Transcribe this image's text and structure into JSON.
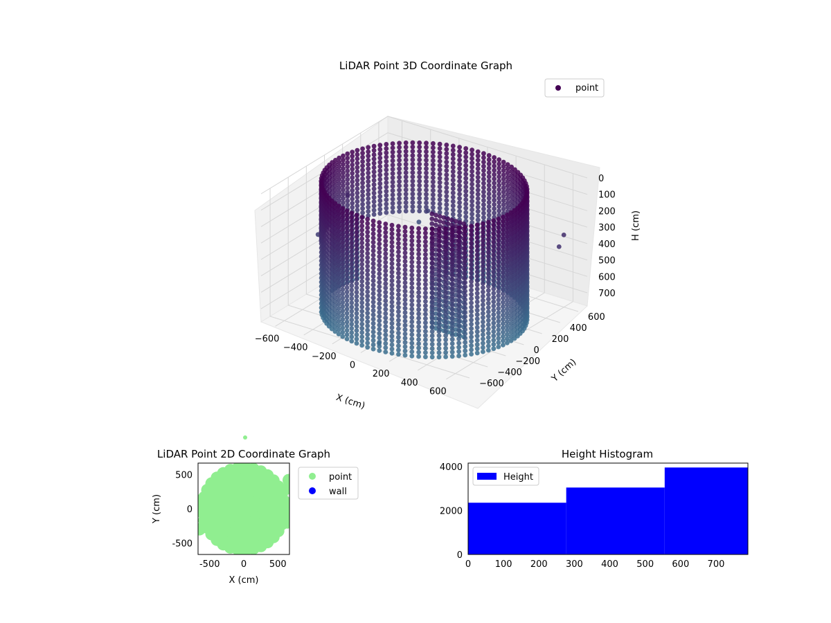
{
  "figure": {
    "background": "#ffffff"
  },
  "chart_data": [
    {
      "type": "scatter",
      "projection": "3d",
      "title": "LiDAR Point 3D Coordinate Graph",
      "xlabel": "X (cm)",
      "ylabel": "Y (cm)",
      "zlabel": "H (cm)",
      "xlim": [
        -700,
        700
      ],
      "ylim": [
        -700,
        700
      ],
      "zlim": [
        0,
        780
      ],
      "z_inverted": true,
      "x_ticks": [
        "−600",
        "−400",
        "−200",
        "0",
        "200",
        "400",
        "600"
      ],
      "y_ticks": [
        "−600",
        "−400",
        "−200",
        "0",
        "200",
        "400",
        "600"
      ],
      "z_ticks": [
        "0",
        "100",
        "200",
        "300",
        "400",
        "500",
        "600",
        "700"
      ],
      "colormap": "viridis-like (purple #440154 at top to teal #3b6e8e at bottom)",
      "grid": true,
      "legend": {
        "position": "top-right",
        "entries": [
          {
            "label": "point",
            "color": "#440154"
          }
        ]
      },
      "series": [
        {
          "name": "point",
          "description_shape": "cylindrical wall scan of a room, radius ~600 cm, heights 0–780 cm"
        }
      ]
    },
    {
      "type": "scatter",
      "title": "LiDAR Point 2D Coordinate Graph",
      "xlabel": "X (cm)",
      "ylabel": "Y (cm)",
      "xlim": [
        -670,
        670
      ],
      "ylim": [
        -670,
        670
      ],
      "x_ticks": [
        -500,
        0,
        500
      ],
      "y_ticks": [
        -500,
        0,
        500
      ],
      "legend": {
        "position": "outside-right",
        "entries": [
          {
            "label": "point",
            "color": "#90ee90"
          },
          {
            "label": "wall",
            "color": "#0000ff"
          }
        ]
      },
      "series": [
        {
          "name": "point",
          "color": "#90ee90",
          "shape": "filled disc radius ~620 cm"
        },
        {
          "name": "wall",
          "color": "#0000ff",
          "points": []
        }
      ]
    },
    {
      "type": "bar",
      "title": "Height Histogram",
      "xlim": [
        0,
        790
      ],
      "ylim": [
        0,
        4150
      ],
      "x_ticks": [
        0,
        100,
        200,
        300,
        400,
        500,
        600,
        700
      ],
      "y_ticks": [
        0,
        2000,
        4000
      ],
      "legend": {
        "position": "top-left",
        "entries": [
          {
            "label": "Height",
            "color": "#0000ff"
          }
        ]
      },
      "series": [
        {
          "name": "Height",
          "color": "#0000ff",
          "bins": [
            {
              "x0": 0,
              "x1": 277,
              "value": 2350
            },
            {
              "x0": 277,
              "x1": 555,
              "value": 3040
            },
            {
              "x0": 555,
              "x1": 790,
              "value": 3950
            }
          ]
        }
      ]
    }
  ]
}
